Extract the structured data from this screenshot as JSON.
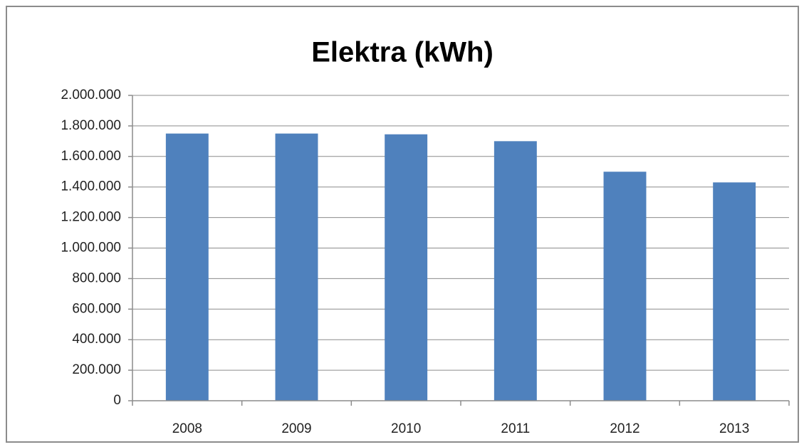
{
  "chart_data": {
    "type": "bar",
    "title": "Elektra (kWh)",
    "categories": [
      "2008",
      "2009",
      "2010",
      "2011",
      "2012",
      "2013"
    ],
    "values": [
      1750000,
      1750000,
      1745000,
      1700000,
      1500000,
      1430000
    ],
    "color": "#4f81bd",
    "ylim": [
      0,
      2000000
    ],
    "yticks": [
      0,
      {
        "value": 200000,
        "label": "200.000"
      },
      {
        "value": 400000,
        "label": "400.000"
      },
      {
        "value": 600000,
        "label": "600.000"
      },
      {
        "value": 800000,
        "label": "800.000"
      },
      {
        "value": 1000000,
        "label": "1.000.000"
      },
      {
        "value": 1200000,
        "label": "1.200.000"
      },
      {
        "value": 1400000,
        "label": "1.400.000"
      },
      {
        "value": 1600000,
        "label": "1.600.000"
      },
      {
        "value": 1800000,
        "label": "1.800.000"
      },
      {
        "value": 2000000,
        "label": "2.000.000"
      }
    ],
    "grid": true
  }
}
